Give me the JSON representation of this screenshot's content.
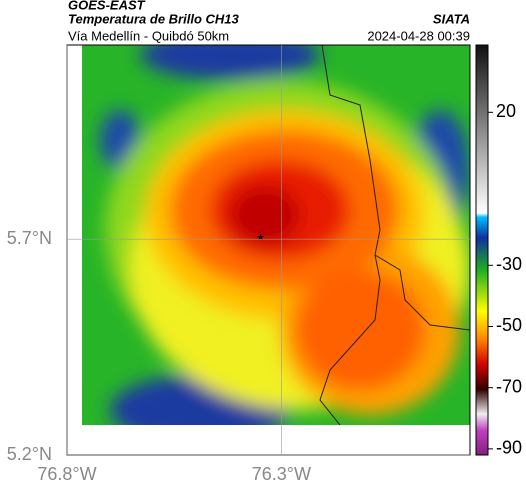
{
  "header": {
    "title": "GOES-EAST",
    "subtitle": "Temperatura de Brillo CH13",
    "source": "SIATA",
    "location": "Vía Medellín - Quibdó 50km",
    "datetime": "2024-04-28 00:39"
  },
  "map": {
    "xlim": [
      -76.8,
      -75.86
    ],
    "ylim": [
      5.2,
      6.15
    ],
    "xticks": [
      {
        "value": -76.8,
        "label": "76.8°W"
      },
      {
        "value": -76.3,
        "label": "76.3°W"
      }
    ],
    "yticks": [
      {
        "value": 5.2,
        "label": "5.2°N"
      },
      {
        "value": 5.7,
        "label": "5.7°N"
      }
    ]
  },
  "colorbar": {
    "clim": [
      -92,
      42
    ],
    "ticks": [
      20,
      -30,
      -50,
      -70,
      -90
    ]
  }
}
